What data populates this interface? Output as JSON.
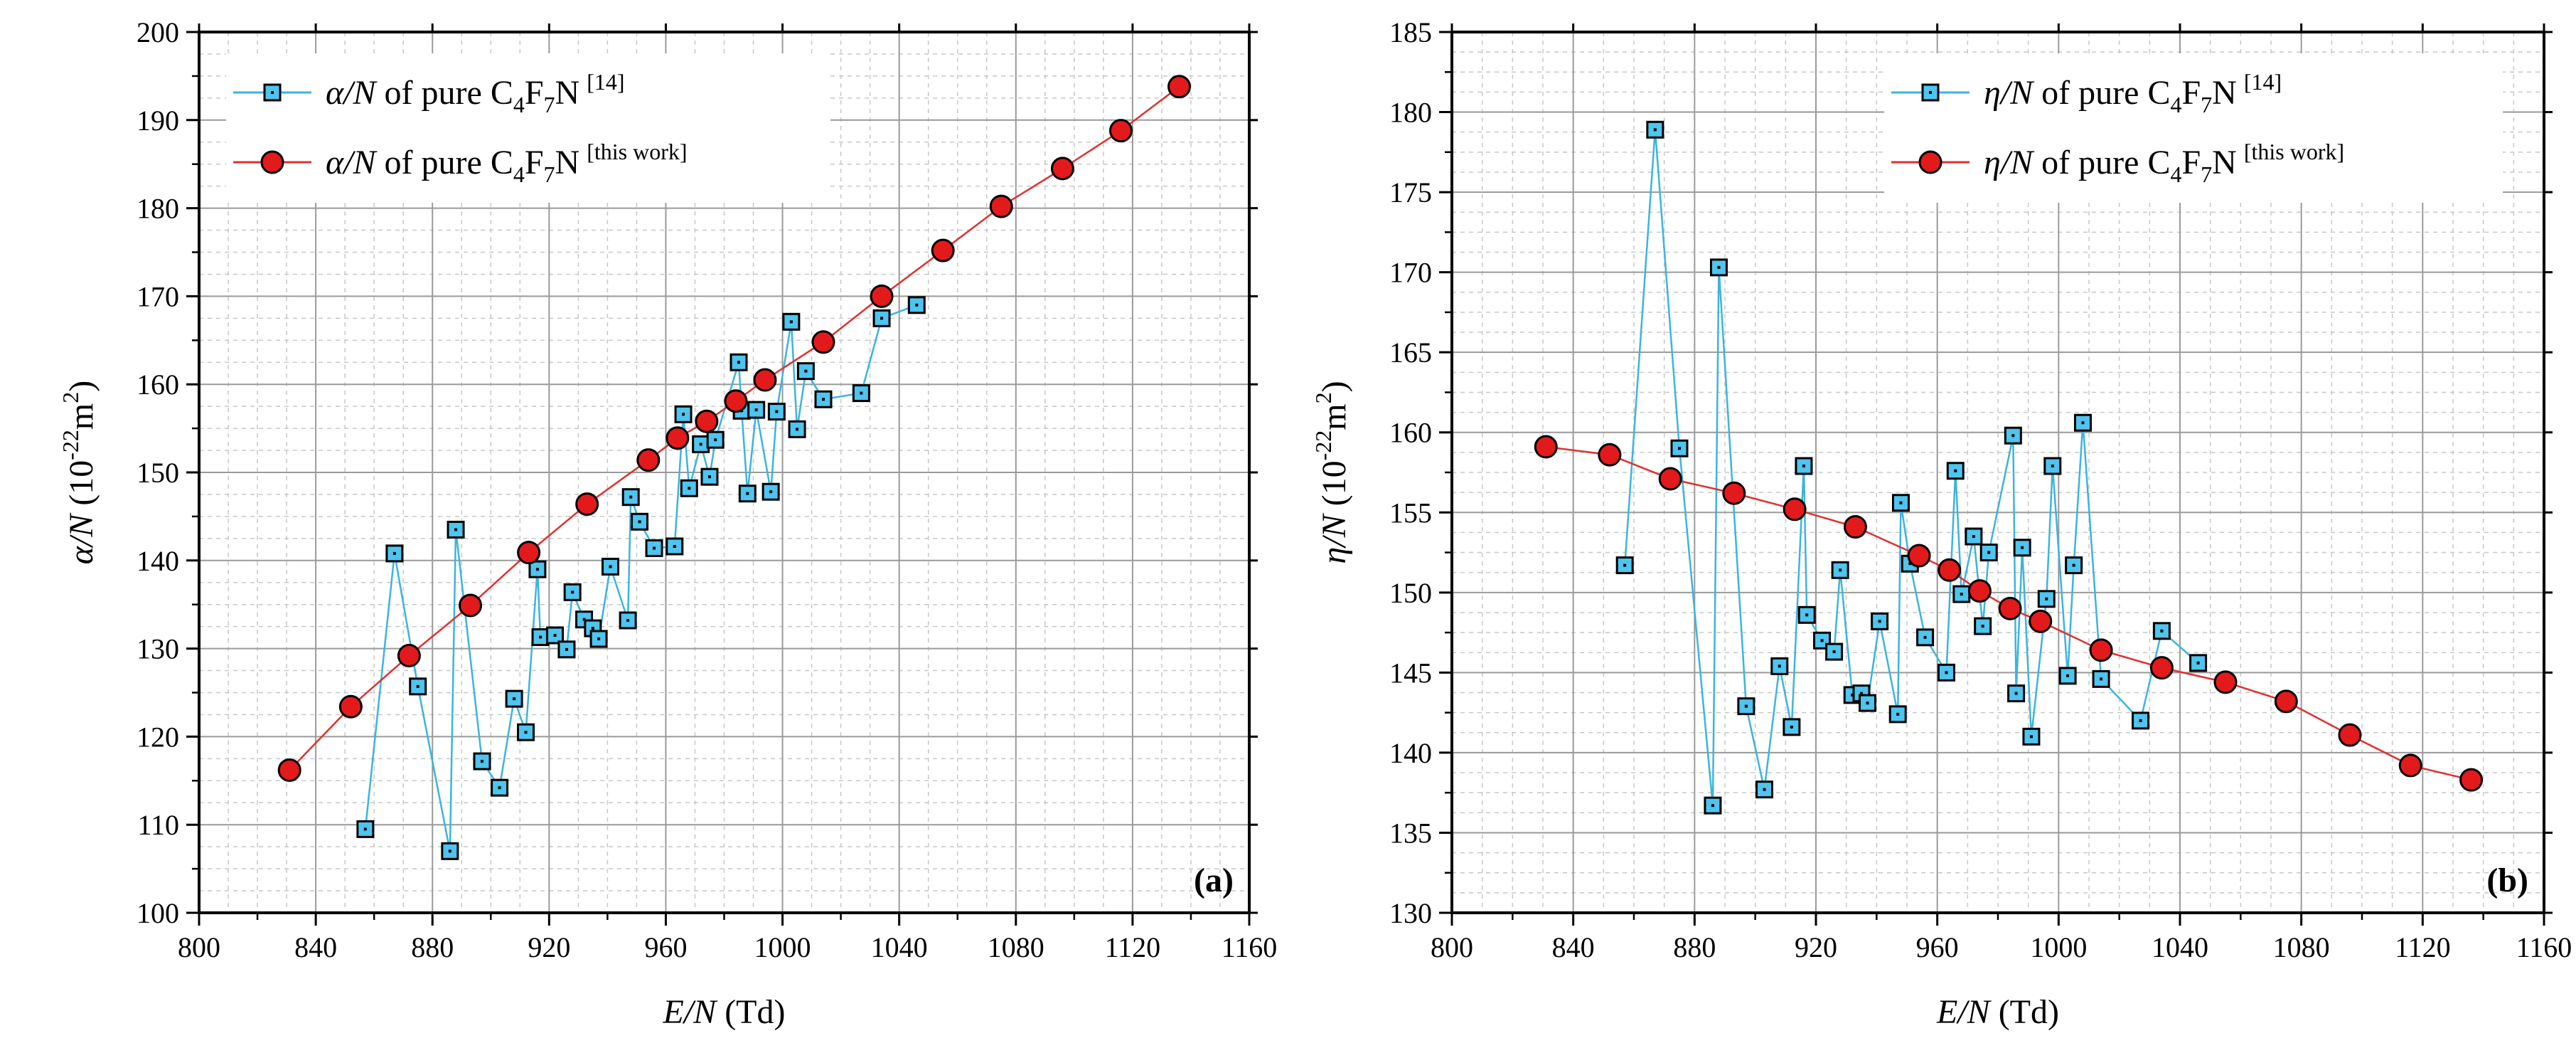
{
  "chart_data": [
    {
      "type": "line",
      "panel": "(a)",
      "xlabel_var": "E/N",
      "xlabel_unit": "(Td)",
      "ylabel_var": "α/N",
      "ylabel_unit": "(10",
      "ylabel_exp": "-22",
      "ylabel_unit2": "m",
      "ylabel_exp2": "2",
      "ylabel_close": ")",
      "xlim": [
        800,
        1160
      ],
      "ylim": [
        100,
        200
      ],
      "x_ticks": [
        "800",
        "840",
        "880",
        "920",
        "960",
        "1000",
        "1040",
        "1080",
        "1120",
        "1160"
      ],
      "y_ticks": [
        "100",
        "110",
        "120",
        "130",
        "140",
        "150",
        "160",
        "170",
        "180",
        "190",
        "200"
      ],
      "legend_position": "top-left",
      "series": [
        {
          "name_var": "α/N",
          "name_text": " of pure C",
          "sub1": "4",
          "mid": "F",
          "sub2": "7",
          "tail": "N",
          "ref": "[14]",
          "marker": "square",
          "color": "#3cb4dc",
          "marker_fill": "#4ec4ee",
          "x": [
            857,
            867,
            875,
            886,
            888,
            897,
            903,
            908,
            912,
            916,
            917,
            922,
            926,
            928,
            932,
            935,
            937,
            941,
            947,
            948,
            951,
            956,
            963,
            966,
            968,
            972,
            975,
            977,
            985,
            986,
            988,
            991,
            996,
            998,
            1003,
            1005,
            1008,
            1014,
            1027,
            1034,
            1046
          ],
          "y": [
            109.5,
            140.8,
            125.7,
            107,
            143.5,
            117.2,
            114.2,
            124.3,
            120.5,
            139,
            131.3,
            131.5,
            129.9,
            136.4,
            133.3,
            132.3,
            131.1,
            139.3,
            133.2,
            147.2,
            144.4,
            141.4,
            141.6,
            156.6,
            148.2,
            153.2,
            149.5,
            153.7,
            162.5,
            157,
            147.6,
            157.1,
            147.8,
            156.9,
            167.1,
            154.9,
            161.5,
            158.3,
            159,
            167.5,
            169
          ]
        },
        {
          "name_var": "α/N",
          "name_text": " of pure C",
          "sub1": "4",
          "mid": "F",
          "sub2": "7",
          "tail": "N",
          "ref": "[this work]",
          "marker": "circle",
          "color": "#e03030",
          "marker_fill": "#e31a1c",
          "x": [
            831,
            852,
            872,
            893,
            913,
            933,
            954,
            964,
            974,
            984,
            994,
            1014,
            1034,
            1055,
            1075,
            1096,
            1116,
            1136
          ],
          "y": [
            116.2,
            123.4,
            129.2,
            134.9,
            140.9,
            146.4,
            151.4,
            153.9,
            155.8,
            158.1,
            160.5,
            164.8,
            170,
            175.2,
            180.2,
            184.5,
            188.8,
            193.8
          ]
        }
      ]
    },
    {
      "type": "line",
      "panel": "(b)",
      "xlabel_var": "E/N",
      "xlabel_unit": "(Td)",
      "ylabel_var": "η/N",
      "ylabel_unit": "(10",
      "ylabel_exp": "-22",
      "ylabel_unit2": "m",
      "ylabel_exp2": "2",
      "ylabel_close": ")",
      "xlim": [
        800,
        1160
      ],
      "ylim": [
        130,
        185
      ],
      "x_ticks": [
        "800",
        "840",
        "880",
        "920",
        "960",
        "1000",
        "1040",
        "1080",
        "1120",
        "1160"
      ],
      "y_ticks": [
        "130",
        "135",
        "140",
        "145",
        "150",
        "155",
        "160",
        "165",
        "170",
        "175",
        "180",
        "185"
      ],
      "legend_position": "top-right",
      "series": [
        {
          "name_var": "η/N",
          "name_text": " of pure C",
          "sub1": "4",
          "mid": "F",
          "sub2": "7",
          "tail": "N",
          "ref": "[14]",
          "marker": "square",
          "color": "#3cb4dc",
          "marker_fill": "#4ec4ee",
          "x": [
            857,
            867,
            875,
            886,
            888,
            897,
            903,
            908,
            912,
            916,
            917,
            922,
            926,
            928,
            932,
            935,
            937,
            941,
            947,
            948,
            951,
            956,
            963,
            966,
            968,
            972,
            975,
            977,
            985,
            986,
            988,
            991,
            996,
            998,
            1003,
            1005,
            1008,
            1014,
            1027,
            1034,
            1046
          ],
          "y": [
            151.7,
            178.9,
            159,
            136.7,
            170.3,
            142.9,
            137.7,
            145.4,
            141.6,
            157.9,
            148.6,
            147,
            146.3,
            151.4,
            143.6,
            143.7,
            143.1,
            148.2,
            142.4,
            155.6,
            151.8,
            147.2,
            145,
            157.6,
            149.9,
            153.5,
            147.9,
            152.5,
            159.8,
            143.7,
            152.8,
            141,
            149.6,
            157.9,
            144.8,
            151.7,
            160.6,
            144.6,
            142,
            147.6,
            145.6
          ]
        },
        {
          "name_var": "η/N",
          "name_text": " of pure C",
          "sub1": "4",
          "mid": "F",
          "sub2": "7",
          "tail": "N",
          "ref": "[this work]",
          "marker": "circle",
          "color": "#e03030",
          "marker_fill": "#e31a1c",
          "x": [
            831,
            852,
            872,
            893,
            913,
            933,
            954,
            964,
            974,
            984,
            994,
            1014,
            1034,
            1055,
            1075,
            1096,
            1116,
            1136
          ],
          "y": [
            159.1,
            158.6,
            157.1,
            156.2,
            155.2,
            154.1,
            152.3,
            151.4,
            150.1,
            149,
            148.2,
            146.4,
            145.3,
            144.4,
            143.2,
            141.1,
            139.2,
            138.3
          ]
        }
      ]
    }
  ]
}
